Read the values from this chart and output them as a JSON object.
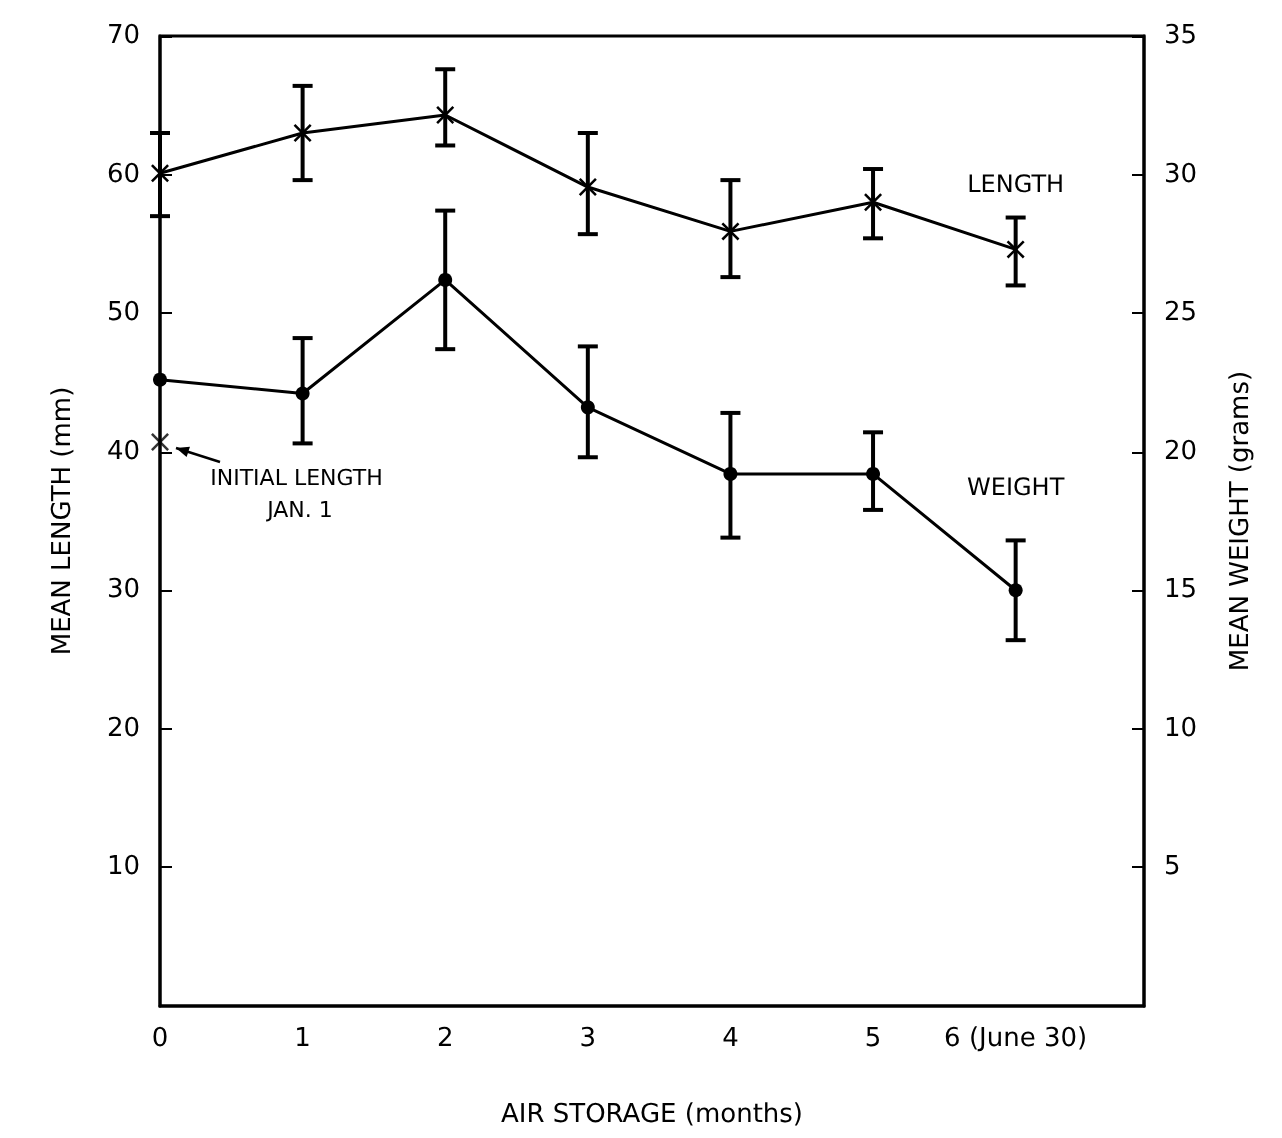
{
  "chart_data": {
    "type": "line",
    "xlabel": "AIR STORAGE (months)",
    "ylabel": "MEAN LENGTH (mm)",
    "y2label": "MEAN WEIGHT (grams)",
    "x": [
      0,
      1,
      2,
      3,
      4,
      5,
      6
    ],
    "xlim": [
      0,
      6.9
    ],
    "xticks": [
      0,
      1,
      2,
      3,
      4,
      5,
      {
        "value": 6,
        "label": "6 (June 30)"
      }
    ],
    "ylim": [
      0,
      70
    ],
    "yticks": [
      10,
      20,
      30,
      40,
      50,
      60,
      70
    ],
    "y2lim": [
      0,
      35
    ],
    "y2ticks": [
      5,
      10,
      15,
      20,
      25,
      30,
      35
    ],
    "grid": false,
    "legend": false,
    "line_style": "solid",
    "series": [
      {
        "name": "LENGTH",
        "color": "#000000",
        "marker": "cross",
        "axis": "y",
        "values": [
          60.1,
          63,
          64.3,
          59.1,
          55.9,
          58,
          54.6
        ],
        "errors": [
          [
            57,
            63
          ],
          [
            59.6,
            66.4
          ],
          [
            62.1,
            67.6
          ],
          [
            55.7,
            63
          ],
          [
            52.6,
            59.6
          ],
          [
            55.4,
            60.4
          ],
          [
            52,
            56.9
          ]
        ]
      },
      {
        "name": "WEIGHT",
        "color": "#000000",
        "marker": "circle",
        "axis": "y2",
        "values": [
          22.6,
          22.1,
          26.2,
          21.6,
          19.2,
          19.2,
          15
        ],
        "errors": [
          null,
          [
            20.3,
            24.1
          ],
          [
            23.7,
            28.7
          ],
          [
            19.8,
            23.8
          ],
          [
            16.9,
            21.4
          ],
          [
            17.9,
            20.7
          ],
          [
            13.2,
            16.8
          ]
        ]
      },
      {
        "type": "scatter",
        "color": "#000000",
        "marker": "cross",
        "axis": "y",
        "x": [
          0
        ],
        "values": [
          40.7
        ]
      }
    ],
    "annotations": [
      {
        "text": "INITIAL LENGTH JAN. 1",
        "x": 0,
        "y": 40.7
      }
    ]
  }
}
